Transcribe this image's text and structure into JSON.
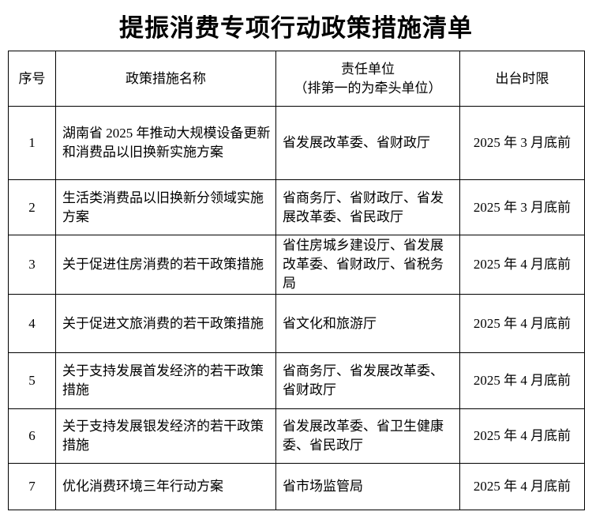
{
  "title": "提振消费专项行动政策措施清单",
  "headers": {
    "no": "序号",
    "name": "政策措施名称",
    "dept_line1": "责任单位",
    "dept_line2": "（排第一的为牵头单位）",
    "deadline": "出台时限"
  },
  "rows": [
    {
      "no": "1",
      "name": "湖南省 2025 年推动大规模设备更新和消费品以旧换新实施方案",
      "dept": "省发展改革委、省财政厅",
      "deadline": "2025 年 3 月底前"
    },
    {
      "no": "2",
      "name": "生活类消费品以旧换新分领域实施方案",
      "dept": "省商务厅、省财政厅、省发展改革委、省民政厅",
      "deadline": "2025 年 3 月底前"
    },
    {
      "no": "3",
      "name": "关于促进住房消费的若干政策措施",
      "dept": "省住房城乡建设厅、省发展改革委、省财政厅、省税务局",
      "deadline": "2025 年 4 月底前"
    },
    {
      "no": "4",
      "name": "关于促进文旅消费的若干政策措施",
      "dept": "省文化和旅游厅",
      "deadline": "2025 年 4 月底前"
    },
    {
      "no": "5",
      "name": "关于支持发展首发经济的若干政策措施",
      "dept": "省商务厅、省发展改革委、省财政厅",
      "deadline": "2025 年 4 月底前"
    },
    {
      "no": "6",
      "name": "关于支持发展银发经济的若干政策措施",
      "dept": "省发展改革委、省卫生健康委、省民政厅",
      "deadline": "2025 年 4 月底前"
    },
    {
      "no": "7",
      "name": "优化消费环境三年行动方案",
      "dept": "省市场监管局",
      "deadline": "2025 年 4 月底前"
    }
  ]
}
